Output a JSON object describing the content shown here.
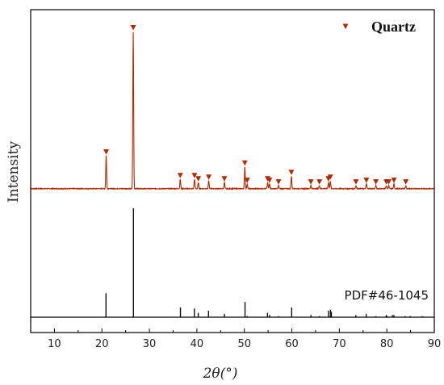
{
  "chart_data": {
    "type": "line",
    "xlabel": "2θ(°)",
    "ylabel": "Intensity",
    "xlim": [
      5,
      90
    ],
    "xticks": [
      10,
      20,
      30,
      40,
      50,
      60,
      70,
      80,
      90
    ],
    "grid": false,
    "legend": {
      "position": "top-right",
      "entries": [
        {
          "name": "Quartz",
          "marker": "down-triangle",
          "color": "#b02a00"
        }
      ]
    },
    "colors": {
      "pattern": "#b02a00",
      "reference": "#111111",
      "axes": "#000000"
    },
    "series": [
      {
        "kind": "xrd-pattern",
        "peaks": [
          {
            "x": 20.9,
            "y": 21
          },
          {
            "x": 26.6,
            "y": 100
          },
          {
            "x": 36.5,
            "y": 6
          },
          {
            "x": 39.5,
            "y": 6
          },
          {
            "x": 40.3,
            "y": 4
          },
          {
            "x": 42.5,
            "y": 5
          },
          {
            "x": 45.8,
            "y": 4
          },
          {
            "x": 50.1,
            "y": 14
          },
          {
            "x": 50.6,
            "y": 3
          },
          {
            "x": 54.9,
            "y": 4
          },
          {
            "x": 55.3,
            "y": 3
          },
          {
            "x": 57.2,
            "y": 2
          },
          {
            "x": 59.9,
            "y": 8
          },
          {
            "x": 64.0,
            "y": 2
          },
          {
            "x": 65.8,
            "y": 2
          },
          {
            "x": 67.7,
            "y": 4
          },
          {
            "x": 68.1,
            "y": 5
          },
          {
            "x": 73.5,
            "y": 2
          },
          {
            "x": 75.7,
            "y": 3
          },
          {
            "x": 77.7,
            "y": 2
          },
          {
            "x": 79.9,
            "y": 2
          },
          {
            "x": 80.4,
            "y": 2
          },
          {
            "x": 81.5,
            "y": 3
          },
          {
            "x": 84.0,
            "y": 2
          }
        ]
      },
      {
        "name": "PDF#46-1045",
        "kind": "reference-sticks",
        "sticks": [
          {
            "x": 20.86,
            "y": 22
          },
          {
            "x": 26.64,
            "y": 100
          },
          {
            "x": 36.54,
            "y": 9
          },
          {
            "x": 39.47,
            "y": 8
          },
          {
            "x": 40.29,
            "y": 4
          },
          {
            "x": 42.45,
            "y": 6
          },
          {
            "x": 45.79,
            "y": 3
          },
          {
            "x": 50.14,
            "y": 14
          },
          {
            "x": 50.62,
            "y": 1
          },
          {
            "x": 54.87,
            "y": 4
          },
          {
            "x": 55.33,
            "y": 2
          },
          {
            "x": 57.24,
            "y": 1
          },
          {
            "x": 59.96,
            "y": 9
          },
          {
            "x": 64.03,
            "y": 2
          },
          {
            "x": 65.79,
            "y": 1
          },
          {
            "x": 67.74,
            "y": 6
          },
          {
            "x": 68.14,
            "y": 7
          },
          {
            "x": 68.32,
            "y": 5
          },
          {
            "x": 73.47,
            "y": 2
          },
          {
            "x": 75.66,
            "y": 3
          },
          {
            "x": 77.68,
            "y": 1
          },
          {
            "x": 79.88,
            "y": 2
          },
          {
            "x": 80.04,
            "y": 1
          },
          {
            "x": 81.17,
            "y": 2
          },
          {
            "x": 81.49,
            "y": 2
          },
          {
            "x": 83.84,
            "y": 1
          },
          {
            "x": 84.95,
            "y": 1
          },
          {
            "x": 87.44,
            "y": 1
          }
        ]
      }
    ]
  }
}
